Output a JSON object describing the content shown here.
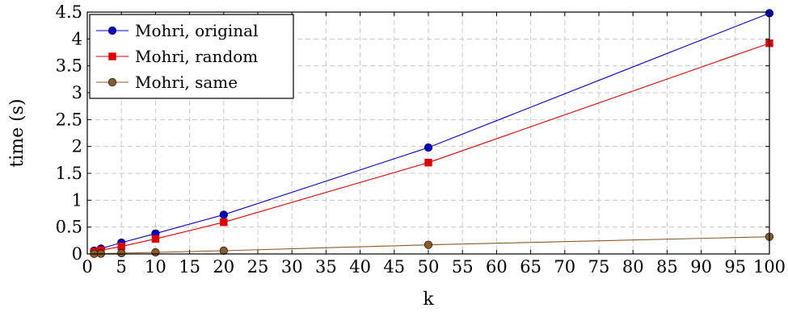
{
  "chart_data": {
    "type": "line",
    "xlabel": "k",
    "ylabel": "time (s)",
    "xlim": [
      0,
      100
    ],
    "ylim": [
      0,
      4.5
    ],
    "xticks": [
      0,
      5,
      10,
      15,
      20,
      25,
      30,
      35,
      40,
      45,
      50,
      55,
      60,
      65,
      70,
      75,
      80,
      85,
      90,
      95,
      100
    ],
    "yticks": [
      0,
      0.5,
      1,
      1.5,
      2,
      2.5,
      3,
      3.5,
      4,
      4.5
    ],
    "grid": true,
    "legend_position": "top-left",
    "series": [
      {
        "name": "Mohri, original",
        "color": "#0000cc",
        "marker": "circle",
        "x": [
          1,
          2,
          5,
          10,
          20,
          50,
          100
        ],
        "y": [
          0.06,
          0.1,
          0.21,
          0.38,
          0.73,
          1.98,
          4.48
        ]
      },
      {
        "name": "Mohri, random",
        "color": "#e00000",
        "marker": "square",
        "x": [
          1,
          2,
          5,
          10,
          20,
          50,
          100
        ],
        "y": [
          0.04,
          0.07,
          0.14,
          0.28,
          0.59,
          1.7,
          3.92
        ]
      },
      {
        "name": "Mohri, same",
        "color": "#8b5a2b",
        "marker": "circle",
        "x": [
          1,
          2,
          5,
          10,
          20,
          50,
          100
        ],
        "y": [
          0.003,
          0.006,
          0.015,
          0.03,
          0.06,
          0.17,
          0.32
        ]
      }
    ]
  }
}
